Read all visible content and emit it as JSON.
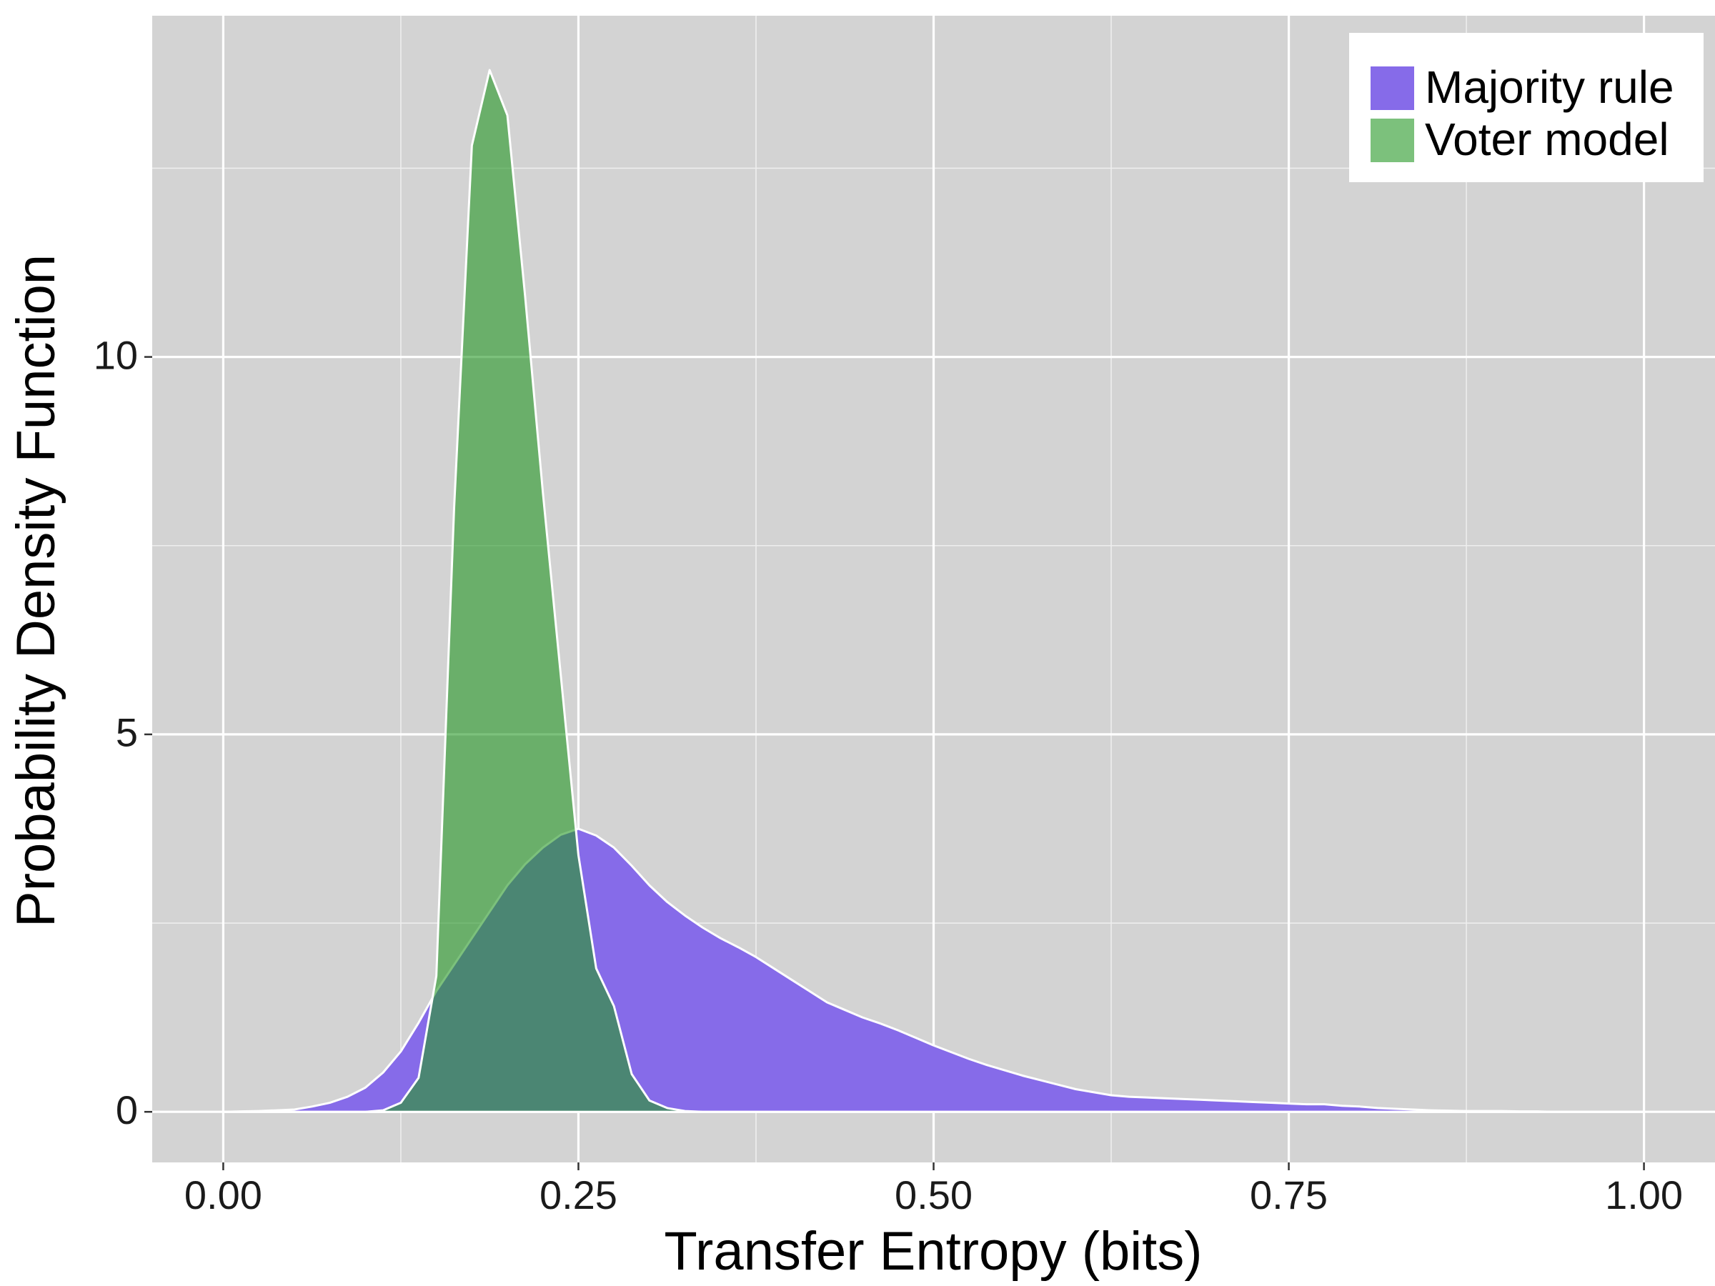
{
  "chart_data": {
    "type": "area",
    "xlabel": "Transfer Entropy (bits)",
    "ylabel": "Probability Density Function",
    "x": [
      0,
      0.0125,
      0.025,
      0.0375,
      0.05,
      0.0625,
      0.075,
      0.0875,
      0.1,
      0.1125,
      0.125,
      0.1375,
      0.15,
      0.1625,
      0.175,
      0.1875,
      0.2,
      0.2125,
      0.225,
      0.2375,
      0.25,
      0.2625,
      0.275,
      0.2875,
      0.3,
      0.3125,
      0.325,
      0.3375,
      0.35,
      0.3625,
      0.375,
      0.3875,
      0.4,
      0.4125,
      0.425,
      0.4375,
      0.45,
      0.4625,
      0.475,
      0.4875,
      0.5,
      0.5125,
      0.525,
      0.5375,
      0.55,
      0.5625,
      0.575,
      0.5875,
      0.6,
      0.6125,
      0.625,
      0.6375,
      0.65,
      0.6625,
      0.675,
      0.6875,
      0.7,
      0.7125,
      0.725,
      0.7375,
      0.75,
      0.7625,
      0.775,
      0.7875,
      0.8,
      0.8125,
      0.825,
      0.8375,
      0.85,
      0.8625,
      0.875,
      0.8875,
      0.9,
      0.9125,
      0.925,
      0.9375,
      0.95,
      0.9625,
      0.975,
      0.9875,
      1
    ],
    "series": [
      {
        "name": "Majority rule",
        "color": "#866be9",
        "values": [
          0,
          0.005,
          0.01,
          0.02,
          0.03,
          0.07,
          0.12,
          0.2,
          0.32,
          0.52,
          0.8,
          1.18,
          1.6,
          1.95,
          2.3,
          2.65,
          3.0,
          3.28,
          3.5,
          3.67,
          3.75,
          3.66,
          3.5,
          3.26,
          3.0,
          2.78,
          2.6,
          2.44,
          2.3,
          2.18,
          2.05,
          1.9,
          1.75,
          1.6,
          1.45,
          1.35,
          1.25,
          1.17,
          1.08,
          0.98,
          0.88,
          0.79,
          0.7,
          0.62,
          0.55,
          0.48,
          0.42,
          0.36,
          0.3,
          0.26,
          0.22,
          0.2,
          0.19,
          0.18,
          0.17,
          0.16,
          0.15,
          0.14,
          0.13,
          0.12,
          0.11,
          0.1,
          0.1,
          0.08,
          0.07,
          0.05,
          0.04,
          0.03,
          0.02,
          0.015,
          0.01,
          0.01,
          0.01,
          0.005,
          0.005,
          0,
          0,
          0,
          0,
          0,
          0
        ]
      },
      {
        "name": "Voter model",
        "color": "#259825",
        "values": [
          0,
          0,
          0,
          0,
          0,
          0,
          0,
          0,
          0,
          0.02,
          0.12,
          0.45,
          1.8,
          8.0,
          12.8,
          13.8,
          13.2,
          10.8,
          8.2,
          5.8,
          3.4,
          1.9,
          1.4,
          0.5,
          0.15,
          0.05,
          0.01,
          0,
          0,
          0,
          0,
          0,
          0,
          0,
          0,
          0,
          0,
          0,
          0,
          0,
          0,
          0,
          0,
          0,
          0,
          0,
          0,
          0,
          0,
          0,
          0,
          0,
          0,
          0,
          0,
          0,
          0,
          0,
          0,
          0,
          0,
          0,
          0,
          0,
          0,
          0,
          0,
          0,
          0,
          0,
          0,
          0,
          0,
          0,
          0,
          0,
          0,
          0,
          0,
          0,
          0
        ]
      }
    ],
    "xlim": [
      -0.05,
      1.05
    ],
    "ylim": [
      -0.67,
      14.52
    ],
    "xticks": [
      {
        "value": 0,
        "label": "0.00"
      },
      {
        "value": 0.25,
        "label": "0.25"
      },
      {
        "value": 0.5,
        "label": "0.50"
      },
      {
        "value": 0.75,
        "label": "0.75"
      },
      {
        "value": 1,
        "label": "1.00"
      }
    ],
    "yticks": [
      0,
      5,
      10
    ],
    "x_minor_ticks": [
      0.125,
      0.375,
      0.625,
      0.875
    ],
    "y_minor_ticks": [
      2.5,
      7.5,
      12.5
    ],
    "grid": true,
    "legend": "top-right"
  }
}
